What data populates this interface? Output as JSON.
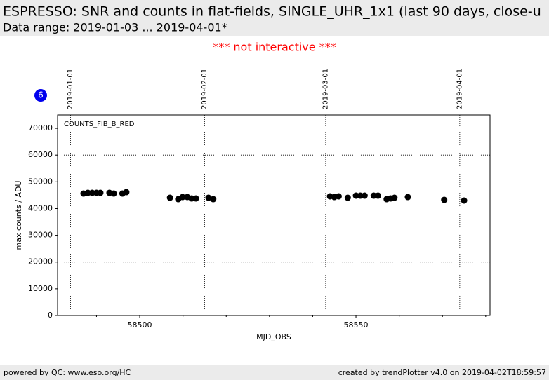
{
  "header": {
    "title": "ESPRESSO: SNR and counts in flat-fields, SINGLE_UHR_1x1 (last 90 days, close-u",
    "subtitle": "Data range: 2019-01-03 ... 2019-04-01*",
    "notice": "*** not interactive ***",
    "badge": "6"
  },
  "chart_data": {
    "type": "scatter",
    "annotation": "COUNTS_FIB_B_RED",
    "x_label": "MJD_OBS",
    "y_label": "max counts / ADU",
    "color": "#000000",
    "x": [
      58487.0,
      58488.0,
      58489.0,
      58490.0,
      58490.9,
      58493.0,
      58494.0,
      58496.0,
      58496.9,
      58507.0,
      58508.9,
      58509.9,
      58511.0,
      58512.0,
      58513.0,
      58515.9,
      58517.0,
      58544.0,
      58545.0,
      58546.0,
      58548.1,
      58550.0,
      58551.0,
      58552.0,
      58554.1,
      58555.1,
      58557.1,
      58558.0,
      58558.9,
      58562.0,
      58570.4,
      58575.0
    ],
    "values": [
      45620,
      45880,
      45880,
      45880,
      45880,
      45880,
      45620,
      45620,
      46150,
      44050,
      43520,
      44310,
      44310,
      43790,
      43790,
      44050,
      43520,
      44570,
      44310,
      44570,
      44050,
      44830,
      44830,
      44830,
      44830,
      44830,
      43520,
      43790,
      44050,
      44310,
      43260,
      43000
    ],
    "xlim": [
      58481,
      58581
    ],
    "xticks": [
      58500,
      58550
    ],
    "xminorticks": [
      58490,
      58510,
      58520,
      58530,
      58540,
      58560,
      58570,
      58580
    ],
    "ylim": [
      0,
      75000
    ],
    "yticks": [
      0,
      10000,
      20000,
      30000,
      40000,
      50000,
      60000,
      70000
    ],
    "hlines": [
      20000,
      60000
    ],
    "date_lines": [
      {
        "value": 58484,
        "label": "2019-01-01"
      },
      {
        "value": 58515,
        "label": "2019-02-01"
      },
      {
        "value": 58543,
        "label": "2019-03-01"
      },
      {
        "value": 58574,
        "label": "2019-04-01"
      }
    ]
  },
  "footer": {
    "left": "powered by QC: www.eso.org/HC",
    "right": "created by trendPlotter v4.0 on 2019-04-02T18:59:57"
  }
}
